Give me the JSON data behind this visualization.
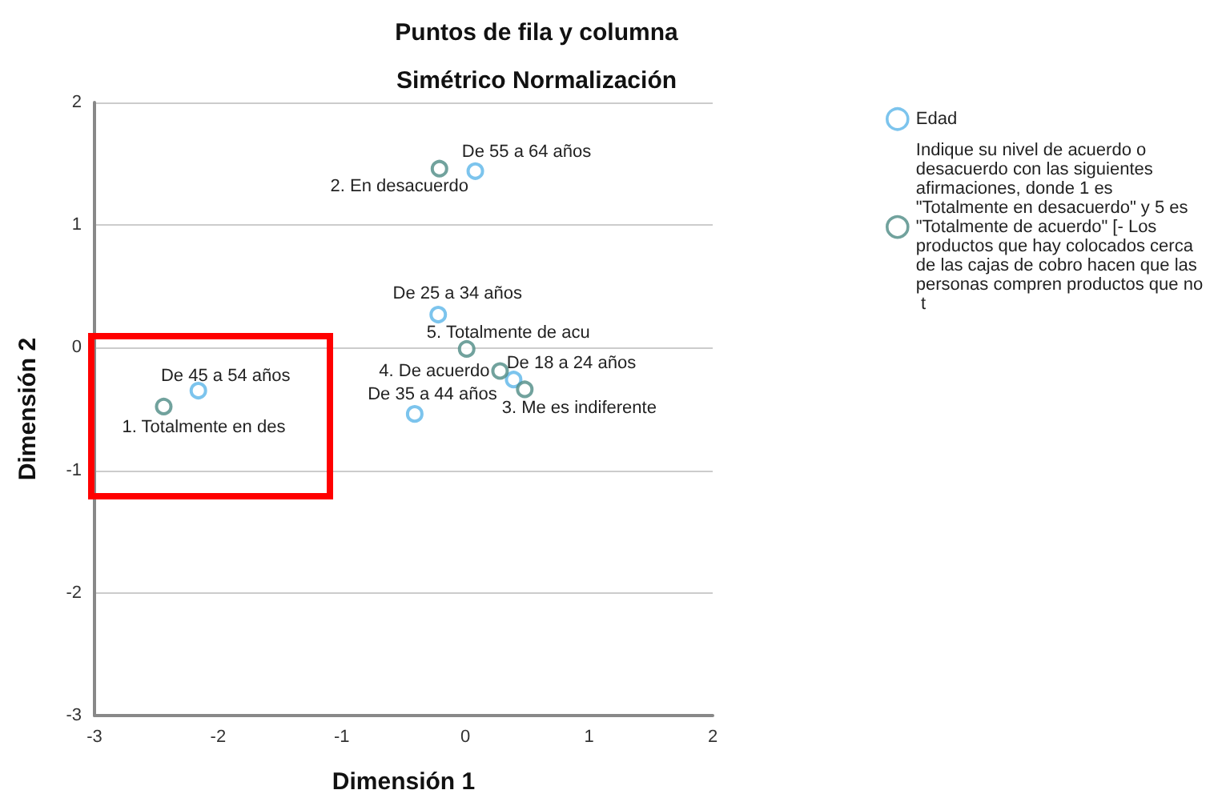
{
  "chart_data": {
    "type": "scatter",
    "title": "Puntos de fila y columna",
    "subtitle": "Simétrico Normalización",
    "xlabel": "Dimensión 1",
    "ylabel": "Dimensión 2",
    "series": [
      {
        "name": "Edad",
        "color": "#5bb5e8",
        "x": [
          0.08,
          -0.22,
          0.39,
          -0.41,
          -2.16
        ],
        "values": [
          1.44,
          0.27,
          -0.26,
          -0.54,
          -0.35
        ]
      },
      {
        "name": "Indique su nivel de acuerdo o desacuerdo con las siguientes afirmaciones, donde 1 es \"Totalmente en desacuerdo\" y 5 es \"Totalmente de acuerdo\" [- Los productos que hay colocados cerca de las cajas de cobro hacen que las personas compren productos que no t",
        "color": "#4d8b84",
        "x": [
          -0.21,
          0.01,
          0.28,
          0.48,
          -2.44
        ],
        "values": [
          1.46,
          -0.01,
          -0.19,
          -0.34,
          -0.48
        ]
      }
    ],
    "annotations": [
      {
        "text": "De 55 a 64 años",
        "x": 0.08,
        "y": 1.44
      },
      {
        "text": "2. En desacuerdo",
        "x": -0.21,
        "y": 1.46
      },
      {
        "text": "De 25 a 34 años",
        "x": -0.22,
        "y": 0.27
      },
      {
        "text": "5. Totalmente de acu",
        "x": 0.01,
        "y": -0.01
      },
      {
        "text": "4. De acuerdo",
        "x": 0.28,
        "y": -0.19
      },
      {
        "text": "De 18 a 24 años",
        "x": 0.39,
        "y": -0.26
      },
      {
        "text": "3. Me es indiferente",
        "x": 0.48,
        "y": -0.34
      },
      {
        "text": "De 35 a 44 años",
        "x": -0.41,
        "y": -0.54
      },
      {
        "text": "De 45 a 54 años",
        "x": -2.16,
        "y": -0.35
      },
      {
        "text": "1. Totalmente en des",
        "x": -2.44,
        "y": -0.48
      }
    ],
    "xlim": [
      -3,
      2
    ],
    "xticks": [
      -3,
      -2,
      -1,
      0,
      1,
      2
    ],
    "ylim": [
      -3,
      2
    ],
    "yticks": [
      -3,
      -2,
      -1,
      0,
      1,
      2
    ],
    "grid": "y",
    "legend": "top right",
    "marker": "circle"
  }
}
